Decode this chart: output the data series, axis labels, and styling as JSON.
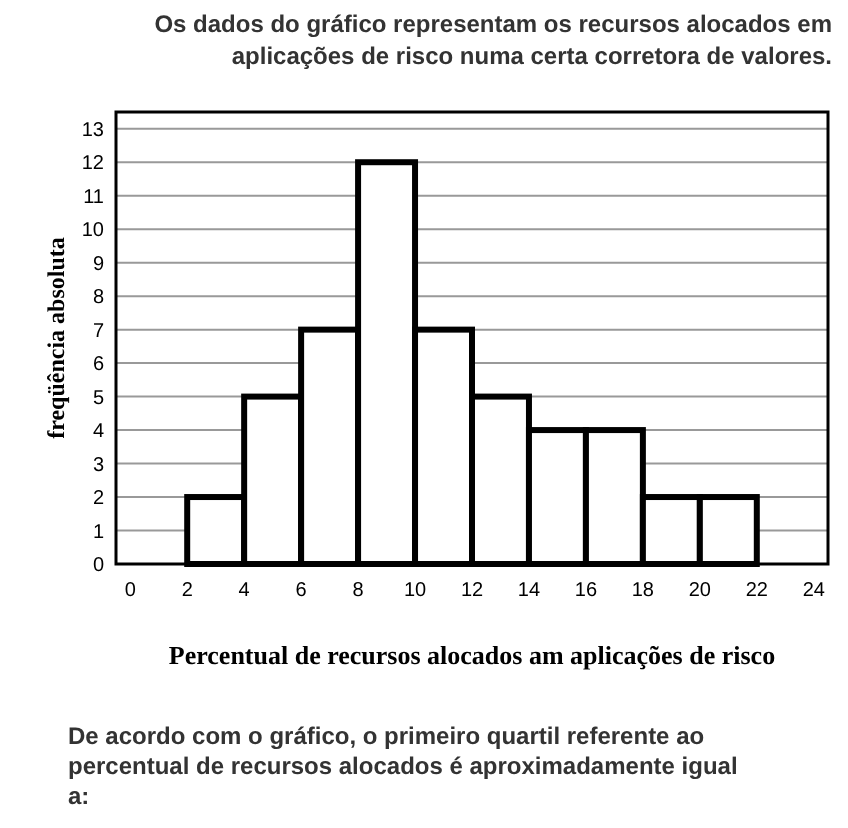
{
  "chart_data": {
    "type": "histogram",
    "title": "Os dados do gráfico representam os recursos alocados em aplicações de risco numa certa corretora de valores.",
    "xlabel": "Percentual de recursos alocados am aplicações de risco",
    "ylabel": "freqüência absoluta",
    "bins": [
      2,
      4,
      6,
      8,
      10,
      12,
      14,
      16,
      18,
      20,
      22
    ],
    "values": [
      2,
      5,
      7,
      12,
      7,
      5,
      4,
      4,
      2,
      2
    ],
    "color": "#ffffff",
    "xlim": [
      -0.5,
      24.5
    ],
    "ylim": [
      0,
      13.5
    ],
    "xticks": [
      0,
      2,
      4,
      6,
      8,
      10,
      12,
      14,
      16,
      18,
      20,
      22,
      24
    ],
    "yticks": [
      0,
      1,
      2,
      3,
      4,
      5,
      6,
      7,
      8,
      9,
      10,
      11,
      12,
      13
    ],
    "grid": "y",
    "annotations": [
      "De acordo com o gráfico, o primeiro quartil referente ao percentual de recursos alocados é aproximadamente igual a:"
    ]
  }
}
